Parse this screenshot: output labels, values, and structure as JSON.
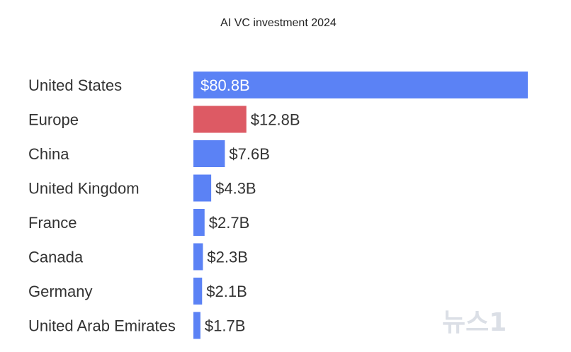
{
  "chart_data": {
    "type": "bar",
    "orientation": "horizontal",
    "title": "AI VC investment 2024",
    "xlabel": "",
    "ylabel": "",
    "categories": [
      "United States",
      "Europe",
      "China",
      "United Kingdom",
      "France",
      "Canada",
      "Germany",
      "United Arab Emirates"
    ],
    "values": [
      80.8,
      12.8,
      7.6,
      4.3,
      2.7,
      2.3,
      2.1,
      1.7
    ],
    "value_labels": [
      "$80.8B",
      "$12.8B",
      "$7.6B",
      "$4.3B",
      "$2.7B",
      "$2.3B",
      "$2.1B",
      "$1.7B"
    ],
    "bar_colors": [
      "#5b82f5",
      "#dd5a64",
      "#5b82f5",
      "#5b82f5",
      "#5b82f5",
      "#5b82f5",
      "#5b82f5",
      "#5b82f5"
    ],
    "xlim": [
      0,
      80.8
    ],
    "grid": false,
    "legend": "none"
  },
  "watermark": {
    "text": "뉴스1",
    "color": "#9aa6b8"
  }
}
